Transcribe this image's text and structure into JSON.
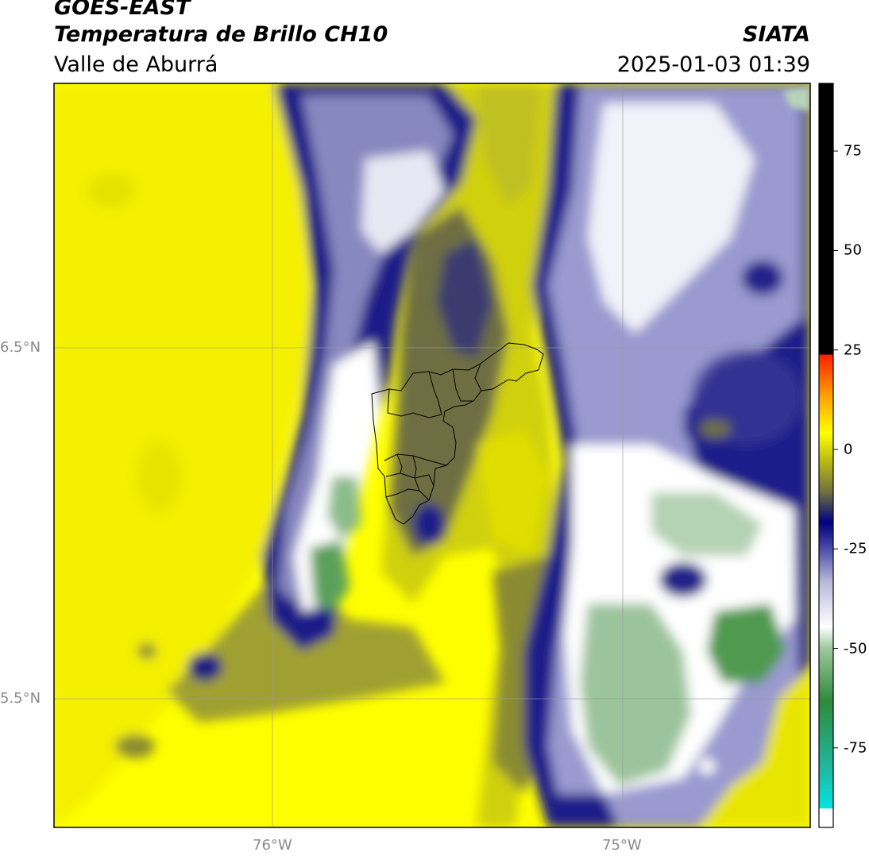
{
  "header": {
    "satellite": "GOES-EAST",
    "product": "Temperatura de Brillo CH10",
    "region": "Valle de Aburrá",
    "agency": "SIATA",
    "datetime": "2025-01-03 01:39"
  },
  "map": {
    "lat_labels": [
      "6.5°N",
      "5.5°N"
    ],
    "lon_labels": [
      "76°W",
      "75°W"
    ],
    "gridlines": true,
    "extent_lon": [
      -76.62,
      -74.48
    ],
    "extent_lat": [
      5.14,
      7.25
    ]
  },
  "colorbar": {
    "ticks": [
      75,
      50,
      25,
      0,
      -25,
      -50,
      -75
    ],
    "range": [
      -95,
      92
    ],
    "colors": {
      "warm_black": "#000000",
      "red": "#ff2000",
      "orange": "#ff9000",
      "yellow": "#ffff00",
      "olive": "#6e6e40",
      "navy": "#000080",
      "lavender": "#b8b8dc",
      "white": "#ffffff",
      "green": "#3a8a3a",
      "cyan": "#00e5e0"
    }
  }
}
